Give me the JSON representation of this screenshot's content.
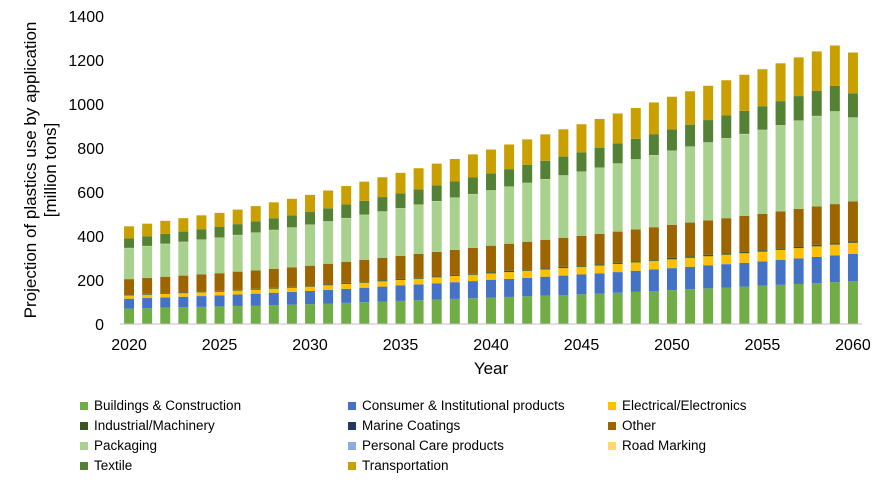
{
  "chart_data": {
    "type": "bar",
    "stacked": true,
    "title": "",
    "xlabel": "Year",
    "ylabel": "Projection of plastics use by application",
    "ylabel_line2": "[million tons]",
    "ylim": [
      0,
      1400
    ],
    "yticks": [
      0,
      200,
      400,
      600,
      800,
      1000,
      1200,
      1400
    ],
    "xticks": [
      2020,
      2025,
      2030,
      2035,
      2040,
      2045,
      2050,
      2055,
      2060
    ],
    "grid": "none",
    "legend_placement": "bottom",
    "categories": [
      2020,
      2021,
      2022,
      2023,
      2024,
      2025,
      2026,
      2027,
      2028,
      2029,
      2030,
      2031,
      2032,
      2033,
      2034,
      2035,
      2036,
      2037,
      2038,
      2039,
      2040,
      2041,
      2042,
      2043,
      2044,
      2045,
      2046,
      2047,
      2048,
      2049,
      2050,
      2051,
      2052,
      2053,
      2054,
      2055,
      2056,
      2057,
      2058,
      2059,
      2060
    ],
    "series": [
      {
        "name": "Buildings & Construction",
        "color": "#70ad47",
        "values": [
          70,
          72,
          74,
          76,
          78,
          80,
          82,
          84,
          86,
          88,
          90,
          93,
          96,
          99,
          102,
          105,
          108,
          111,
          114,
          117,
          120,
          123,
          126,
          129,
          132,
          135,
          138,
          142,
          146,
          150,
          154,
          158,
          162,
          166,
          170,
          174,
          178,
          182,
          186,
          190,
          194
        ]
      },
      {
        "name": "Consumer & Institutional products",
        "color": "#4472c4",
        "values": [
          45,
          46,
          47,
          48,
          49,
          50,
          52,
          54,
          56,
          58,
          60,
          62,
          64,
          66,
          68,
          70,
          72,
          74,
          76,
          78,
          80,
          82,
          84,
          86,
          88,
          90,
          92,
          94,
          96,
          98,
          100,
          102,
          104,
          106,
          108,
          110,
          113,
          116,
          119,
          122,
          125
        ]
      },
      {
        "name": "Electrical/Electronics",
        "color": "#ffc000",
        "values": [
          15,
          15,
          16,
          16,
          17,
          17,
          18,
          18,
          19,
          19,
          20,
          21,
          22,
          23,
          24,
          25,
          26,
          27,
          28,
          29,
          30,
          31,
          32,
          33,
          34,
          35,
          36,
          37,
          38,
          39,
          40,
          41,
          42,
          43,
          44,
          45,
          46,
          47,
          48,
          49,
          50
        ]
      },
      {
        "name": "Industrial/Machinery",
        "color": "#375623",
        "values": [
          3,
          3,
          3,
          3,
          3,
          3,
          3,
          3,
          3,
          3,
          4,
          4,
          4,
          4,
          4,
          4,
          4,
          4,
          4,
          4,
          5,
          5,
          5,
          5,
          5,
          5,
          5,
          5,
          5,
          5,
          6,
          6,
          6,
          6,
          6,
          6,
          6,
          6,
          6,
          6,
          7
        ]
      },
      {
        "name": "Marine Coatings",
        "color": "#203864",
        "values": [
          1,
          1,
          1,
          1,
          1,
          1,
          1,
          1,
          1,
          1,
          1,
          1,
          1,
          1,
          1,
          1,
          1,
          1,
          1,
          1,
          1,
          1,
          1,
          1,
          1,
          1,
          1,
          1,
          1,
          1,
          1,
          1,
          1,
          1,
          1,
          1,
          1,
          1,
          1,
          1,
          1
        ]
      },
      {
        "name": "Other",
        "color": "#9c6500",
        "values": [
          70,
          72,
          74,
          76,
          78,
          80,
          82,
          84,
          86,
          88,
          90,
          93,
          96,
          99,
          102,
          105,
          108,
          111,
          114,
          117,
          120,
          123,
          126,
          129,
          132,
          135,
          138,
          141,
          144,
          147,
          150,
          153,
          156,
          159,
          162,
          165,
          168,
          171,
          174,
          177,
          180
        ]
      },
      {
        "name": "Packaging",
        "color": "#a9d18e",
        "values": [
          140,
          144,
          148,
          152,
          156,
          160,
          165,
          170,
          175,
          180,
          185,
          191,
          197,
          203,
          209,
          215,
          222,
          229,
          236,
          243,
          250,
          258,
          266,
          274,
          282,
          290,
          299,
          308,
          317,
          326,
          335,
          344,
          353,
          362,
          371,
          380,
          390,
          400,
          410,
          420,
          380
        ]
      },
      {
        "name": "Personal Care products",
        "color": "#8faadc",
        "values": [
          1,
          1,
          1,
          1,
          1,
          1,
          1,
          1,
          1,
          1,
          1,
          1,
          1,
          1,
          1,
          1,
          1,
          1,
          1,
          1,
          1,
          1,
          1,
          1,
          1,
          1,
          1,
          1,
          1,
          1,
          1,
          1,
          1,
          1,
          1,
          1,
          1,
          1,
          1,
          1,
          1
        ]
      },
      {
        "name": "Road Marking",
        "color": "#ffd966",
        "values": [
          1,
          1,
          1,
          1,
          1,
          1,
          1,
          1,
          1,
          1,
          1,
          1,
          1,
          1,
          1,
          1,
          1,
          1,
          1,
          1,
          1,
          1,
          1,
          1,
          1,
          1,
          1,
          1,
          1,
          1,
          1,
          1,
          1,
          1,
          1,
          1,
          1,
          1,
          1,
          1,
          1
        ]
      },
      {
        "name": "Textile",
        "color": "#548235",
        "values": [
          43,
          44,
          45,
          46,
          47,
          48,
          49,
          51,
          53,
          55,
          57,
          59,
          61,
          63,
          65,
          67,
          69,
          71,
          73,
          75,
          77,
          79,
          81,
          83,
          85,
          87,
          89,
          91,
          93,
          95,
          97,
          99,
          101,
          103,
          105,
          107,
          109,
          111,
          113,
          115,
          110
        ]
      },
      {
        "name": "Transportation",
        "color": "#c9a000",
        "values": [
          55,
          57,
          59,
          61,
          63,
          64,
          66,
          69,
          72,
          75,
          78,
          81,
          84,
          87,
          90,
          93,
          96,
          99,
          102,
          105,
          108,
          112,
          116,
          120,
          124,
          128,
          132,
          136,
          140,
          144,
          148,
          152,
          156,
          160,
          164,
          168,
          172,
          176,
          180,
          184,
          185
        ]
      }
    ]
  }
}
